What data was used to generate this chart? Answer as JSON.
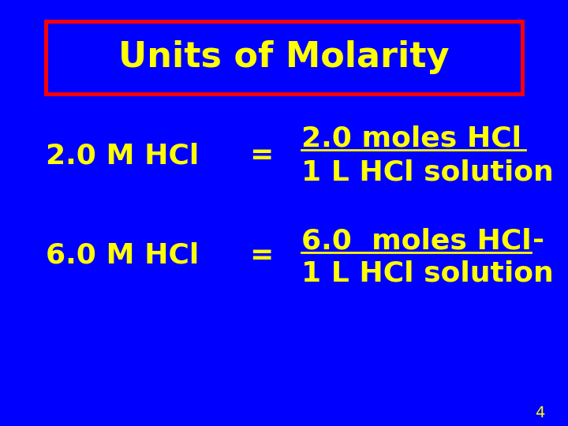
{
  "background_color": "#0000FF",
  "title_text": "Units of Molarity",
  "title_color": "#FFFF00",
  "title_box_edge_color": "#FF0000",
  "title_fontsize": 32,
  "body_color": "#FFFF00",
  "body_fontsize": 26,
  "row1_left": "2.0 M HCl",
  "row1_eq": "=",
  "row1_num": "2.0 moles HCl",
  "row1_den": "1 L HCl solution",
  "row2_left": "6.0 M HCl",
  "row2_eq": "=",
  "row2_num": "6.0  moles HCl",
  "row2_den": "1 L HCl solution",
  "page_number": "4",
  "page_num_color": "#FFFF00",
  "page_num_fontsize": 14
}
